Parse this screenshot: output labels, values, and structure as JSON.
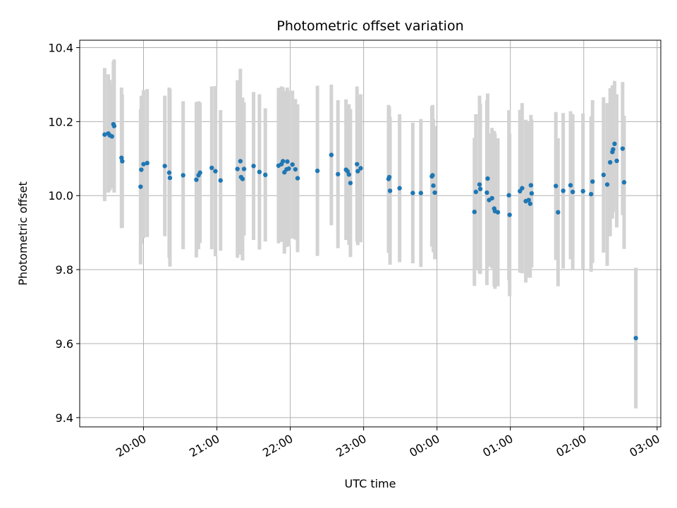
{
  "chart_data": {
    "type": "scatter",
    "title": "Photometric offset variation",
    "xlabel": "UTC time",
    "ylabel": "Photometric offset",
    "xlim": [
      19.13,
      27.05
    ],
    "ylim": [
      9.375,
      10.42
    ],
    "grid": true,
    "x_tick_values": [
      20,
      21,
      22,
      23,
      24,
      25,
      26,
      27
    ],
    "x_tick_labels": [
      "20:00",
      "21:00",
      "22:00",
      "23:00",
      "00:00",
      "01:00",
      "02:00",
      "03:00"
    ],
    "y_tick_values": [
      9.4,
      9.6,
      9.8,
      10.0,
      10.2,
      10.4
    ],
    "y_tick_labels": [
      "9.4",
      "9.6",
      "9.8",
      "10.0",
      "10.2",
      "10.4"
    ],
    "colors": {
      "point": "#1f77b4",
      "errorbar": "#d3d3d3",
      "grid": "#b0b0b0"
    },
    "series": [
      {
        "x": [
          19.47,
          19.52,
          19.54,
          19.57,
          19.59,
          19.6,
          19.7,
          19.71,
          19.96,
          19.97,
          20.0,
          20.05,
          20.29,
          20.35,
          20.36,
          20.54,
          20.72,
          20.75,
          20.77,
          20.93,
          20.98,
          21.05,
          21.28,
          21.32,
          21.33,
          21.35,
          21.37,
          21.5,
          21.58,
          21.66,
          21.84,
          21.88,
          21.9,
          21.92,
          21.95,
          21.96,
          21.98,
          22.03,
          22.07,
          22.1,
          22.37,
          22.56,
          22.65,
          22.76,
          22.78,
          22.8,
          22.82,
          22.91,
          22.92,
          22.96,
          23.34,
          23.35,
          23.36,
          23.49,
          23.67,
          23.78,
          23.93,
          23.94,
          23.95,
          23.97,
          24.51,
          24.53,
          24.58,
          24.59,
          24.68,
          24.69,
          24.71,
          24.75,
          24.78,
          24.79,
          24.83,
          24.98,
          24.99,
          25.13,
          25.16,
          25.21,
          25.25,
          25.27,
          25.28,
          25.29,
          25.62,
          25.65,
          25.72,
          25.82,
          25.85,
          25.99,
          26.1,
          26.12,
          26.27,
          26.32,
          26.36,
          26.39,
          26.4,
          26.42,
          26.45,
          26.53,
          26.55,
          26.71
        ],
        "y": [
          10.165,
          10.168,
          10.163,
          10.16,
          10.193,
          10.188,
          10.102,
          10.093,
          10.024,
          10.07,
          10.085,
          10.088,
          10.08,
          10.062,
          10.048,
          10.055,
          10.043,
          10.055,
          10.062,
          10.075,
          10.066,
          10.041,
          10.072,
          10.093,
          10.05,
          10.045,
          10.072,
          10.08,
          10.064,
          10.056,
          10.081,
          10.085,
          10.093,
          10.063,
          10.071,
          10.092,
          10.073,
          10.084,
          10.071,
          10.047,
          10.067,
          10.11,
          10.058,
          10.07,
          10.066,
          10.057,
          10.034,
          10.085,
          10.066,
          10.074,
          10.045,
          10.05,
          10.013,
          10.02,
          10.007,
          10.007,
          10.052,
          10.055,
          10.027,
          10.008,
          9.956,
          10.01,
          10.03,
          10.018,
          10.008,
          10.046,
          9.988,
          9.993,
          9.965,
          9.958,
          9.955,
          10.001,
          9.948,
          10.012,
          10.02,
          9.985,
          9.988,
          9.978,
          10.028,
          10.006,
          10.026,
          9.955,
          10.013,
          10.028,
          10.01,
          10.012,
          10.004,
          10.038,
          10.056,
          10.03,
          10.09,
          10.118,
          10.125,
          10.14,
          10.094,
          10.127,
          10.036,
          9.615
        ],
        "err": [
          0.18,
          0.16,
          0.15,
          0.14,
          0.17,
          0.18,
          0.19,
          0.18,
          0.21,
          0.2,
          0.2,
          0.2,
          0.19,
          0.23,
          0.24,
          0.2,
          0.21,
          0.2,
          0.19,
          0.22,
          0.23,
          0.19,
          0.24,
          0.25,
          0.21,
          0.22,
          0.18,
          0.2,
          0.21,
          0.18,
          0.21,
          0.21,
          0.2,
          0.22,
          0.21,
          0.2,
          0.21,
          0.2,
          0.19,
          0.2,
          0.23,
          0.19,
          0.2,
          0.19,
          0.18,
          0.19,
          0.2,
          0.21,
          0.2,
          0.2,
          0.2,
          0.19,
          0.2,
          0.2,
          0.19,
          0.2,
          0.19,
          0.19,
          0.18,
          0.18,
          0.2,
          0.21,
          0.24,
          0.23,
          0.25,
          0.23,
          0.18,
          0.19,
          0.21,
          0.21,
          0.2,
          0.23,
          0.22,
          0.22,
          0.23,
          0.22,
          0.21,
          0.2,
          0.19,
          0.2,
          0.2,
          0.2,
          0.21,
          0.2,
          0.21,
          0.21,
          0.21,
          0.22,
          0.21,
          0.22,
          0.2,
          0.18,
          0.17,
          0.17,
          0.18,
          0.18,
          0.18,
          0.19
        ]
      }
    ]
  }
}
